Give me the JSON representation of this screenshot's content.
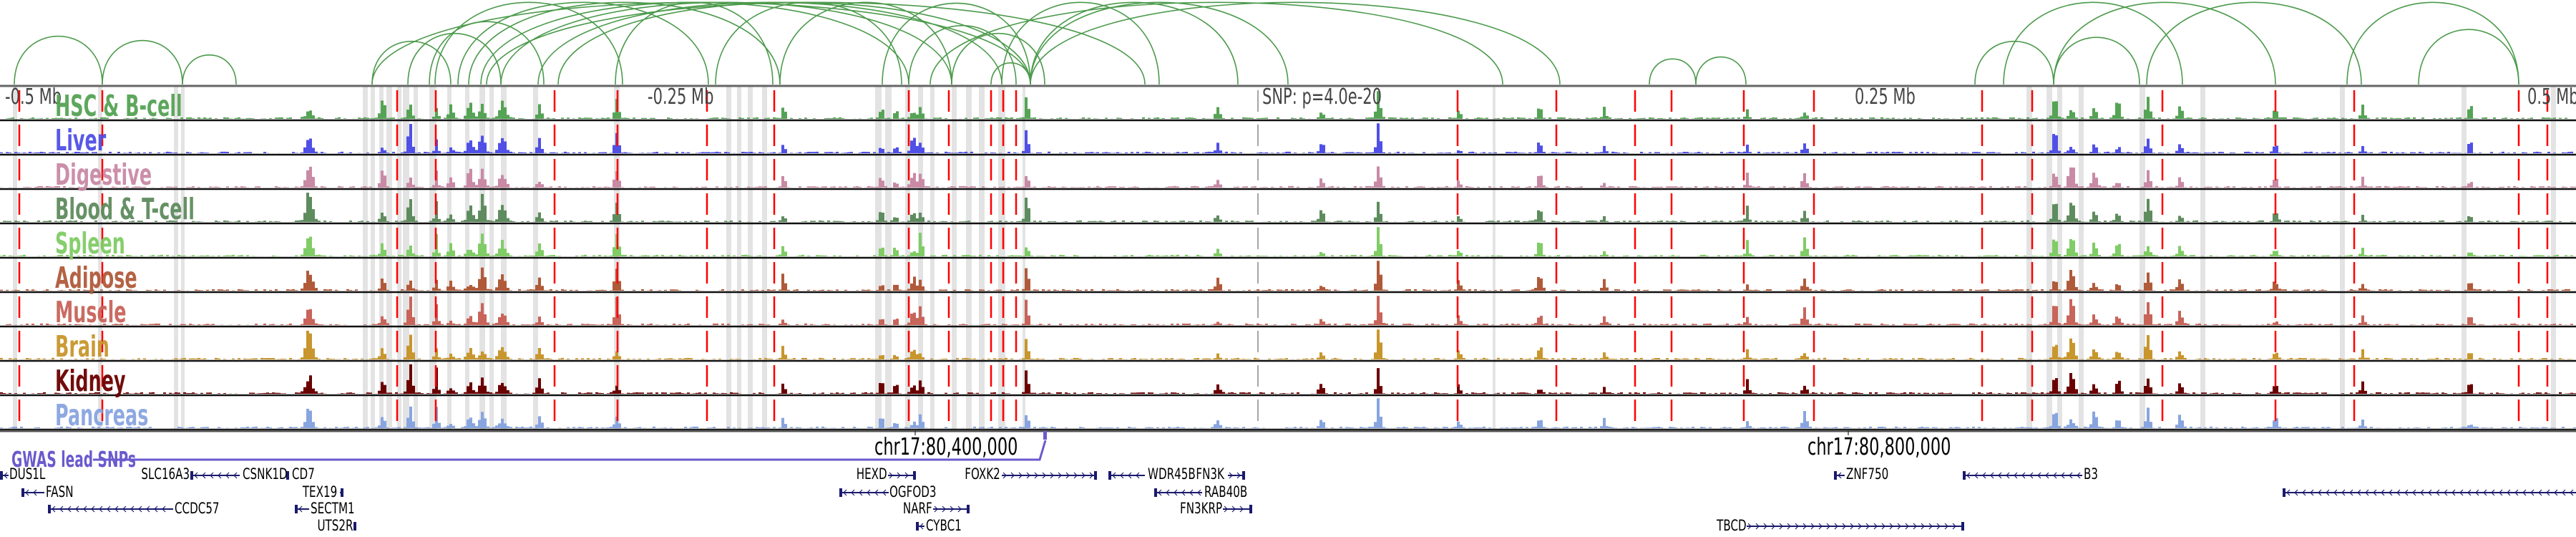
{
  "ruler": {
    "ticks": [
      {
        "label": "-0.5 Mb",
        "kb": -500
      },
      {
        "label": "-0.25 Mb",
        "kb": -250
      },
      {
        "label": "0.25 Mb",
        "kb": 250
      },
      {
        "label": "0.5 Mb",
        "kb": 500
      }
    ],
    "snp_label": "SNP: p=4.0e-20"
  },
  "tracks": [
    {
      "label": "HSC & B-cell",
      "color": "#55a355"
    },
    {
      "label": "Liver",
      "color": "#5050e6"
    },
    {
      "label": "Digestive",
      "color": "#c98aa5"
    },
    {
      "label": "Blood & T-cell",
      "color": "#5e8c5e"
    },
    {
      "label": "Spleen",
      "color": "#80cc66"
    },
    {
      "label": "Adipose",
      "color": "#b05a3a"
    },
    {
      "label": "Muscle",
      "color": "#c8645a"
    },
    {
      "label": "Brain",
      "color": "#c8962d"
    },
    {
      "label": "Kidney",
      "color": "#6b0000"
    },
    {
      "label": "Pancreas",
      "color": "#88a5e0"
    }
  ],
  "gwas": {
    "label": "GWAS lead SNPs",
    "color": "#6a5acd"
  },
  "coordinates": [
    {
      "label": "chr17:80,400,000"
    },
    {
      "label": "chr17:80,800,000"
    }
  ],
  "genes": [
    {
      "name": "DUS1L",
      "row": 0,
      "strand": "-",
      "label_side": "right"
    },
    {
      "name": "FASN",
      "row": 1,
      "strand": "-",
      "label_side": "right"
    },
    {
      "name": "CCDC57",
      "row": 2,
      "strand": "-",
      "label_side": "right"
    },
    {
      "name": "SLC16A3",
      "row": 0,
      "strand": "+",
      "label_side": "left"
    },
    {
      "name": "CSNK1D",
      "row": 0,
      "strand": "-",
      "label_side": "right"
    },
    {
      "name": "CD7",
      "row": 0,
      "strand": "+",
      "label_side": "right"
    },
    {
      "name": "TEX19",
      "row": 1,
      "strand": "+",
      "label_side": "left"
    },
    {
      "name": "SECTM1",
      "row": 2,
      "strand": "-",
      "label_side": "right"
    },
    {
      "name": "UTS2R",
      "row": 3,
      "strand": "+",
      "label_side": "left"
    },
    {
      "name": "HEXD",
      "row": 0,
      "strand": "+",
      "label_side": "left"
    },
    {
      "name": "OGFOD3",
      "row": 1,
      "strand": "-",
      "label_side": "right"
    },
    {
      "name": "NARF",
      "row": 2,
      "strand": "+",
      "label_side": "left"
    },
    {
      "name": "CYBC1",
      "row": 3,
      "strand": "-",
      "label_side": "right"
    },
    {
      "name": "FOXK2",
      "row": 0,
      "strand": "+",
      "label_side": "left"
    },
    {
      "name": "WDR45B",
      "row": 0,
      "strand": "-",
      "label_side": "right"
    },
    {
      "name": "RAB40B",
      "row": 1,
      "strand": "-",
      "label_side": "right"
    },
    {
      "name": "FN3KRP",
      "row": 2,
      "strand": "+",
      "label_side": "left"
    },
    {
      "name": "FN3K",
      "row": 0,
      "strand": "+",
      "label_side": "left"
    },
    {
      "name": "ZNF750",
      "row": 0,
      "strand": "-",
      "label_side": "right"
    },
    {
      "name": "TBCD",
      "row": 3,
      "strand": "+",
      "label_side": "left"
    },
    {
      "name": "B3",
      "row": 0,
      "strand": "-",
      "label_side": "right"
    }
  ]
}
